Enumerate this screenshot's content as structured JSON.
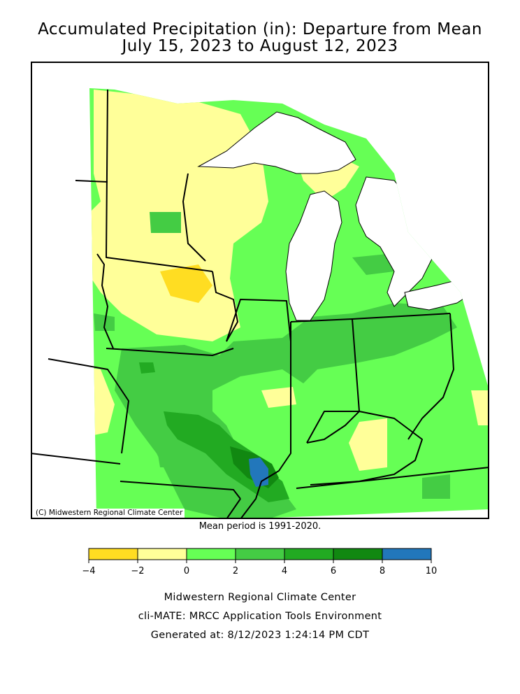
{
  "title": {
    "line1": "Accumulated Precipitation (in): Departure from Mean",
    "line2": "July 15, 2023 to August 12, 2023"
  },
  "map": {
    "copyright": "(C) Midwestern Regional Climate Center",
    "mean_note": "Mean period is 1991-2020."
  },
  "legend": {
    "bins": [
      {
        "from": -4,
        "to": -2,
        "color": "#ffdd22"
      },
      {
        "from": -2,
        "to": 0,
        "color": "#ffff99"
      },
      {
        "from": 0,
        "to": 2,
        "color": "#66ff55"
      },
      {
        "from": 2,
        "to": 4,
        "color": "#44cc44"
      },
      {
        "from": 4,
        "to": 6,
        "color": "#22aa22"
      },
      {
        "from": 6,
        "to": 8,
        "color": "#118811"
      },
      {
        "from": 8,
        "to": 10,
        "color": "#2277bb"
      }
    ],
    "tick_labels": [
      "-4",
      "-2",
      "0",
      "2",
      "4",
      "6",
      "8",
      "10"
    ]
  },
  "footer": {
    "line1": "Midwestern Regional Climate Center",
    "line2": "cli-MATE: MRCC Application Tools Environment",
    "line3": "Generated at: 8/12/2023 1:24:14 PM CDT"
  }
}
